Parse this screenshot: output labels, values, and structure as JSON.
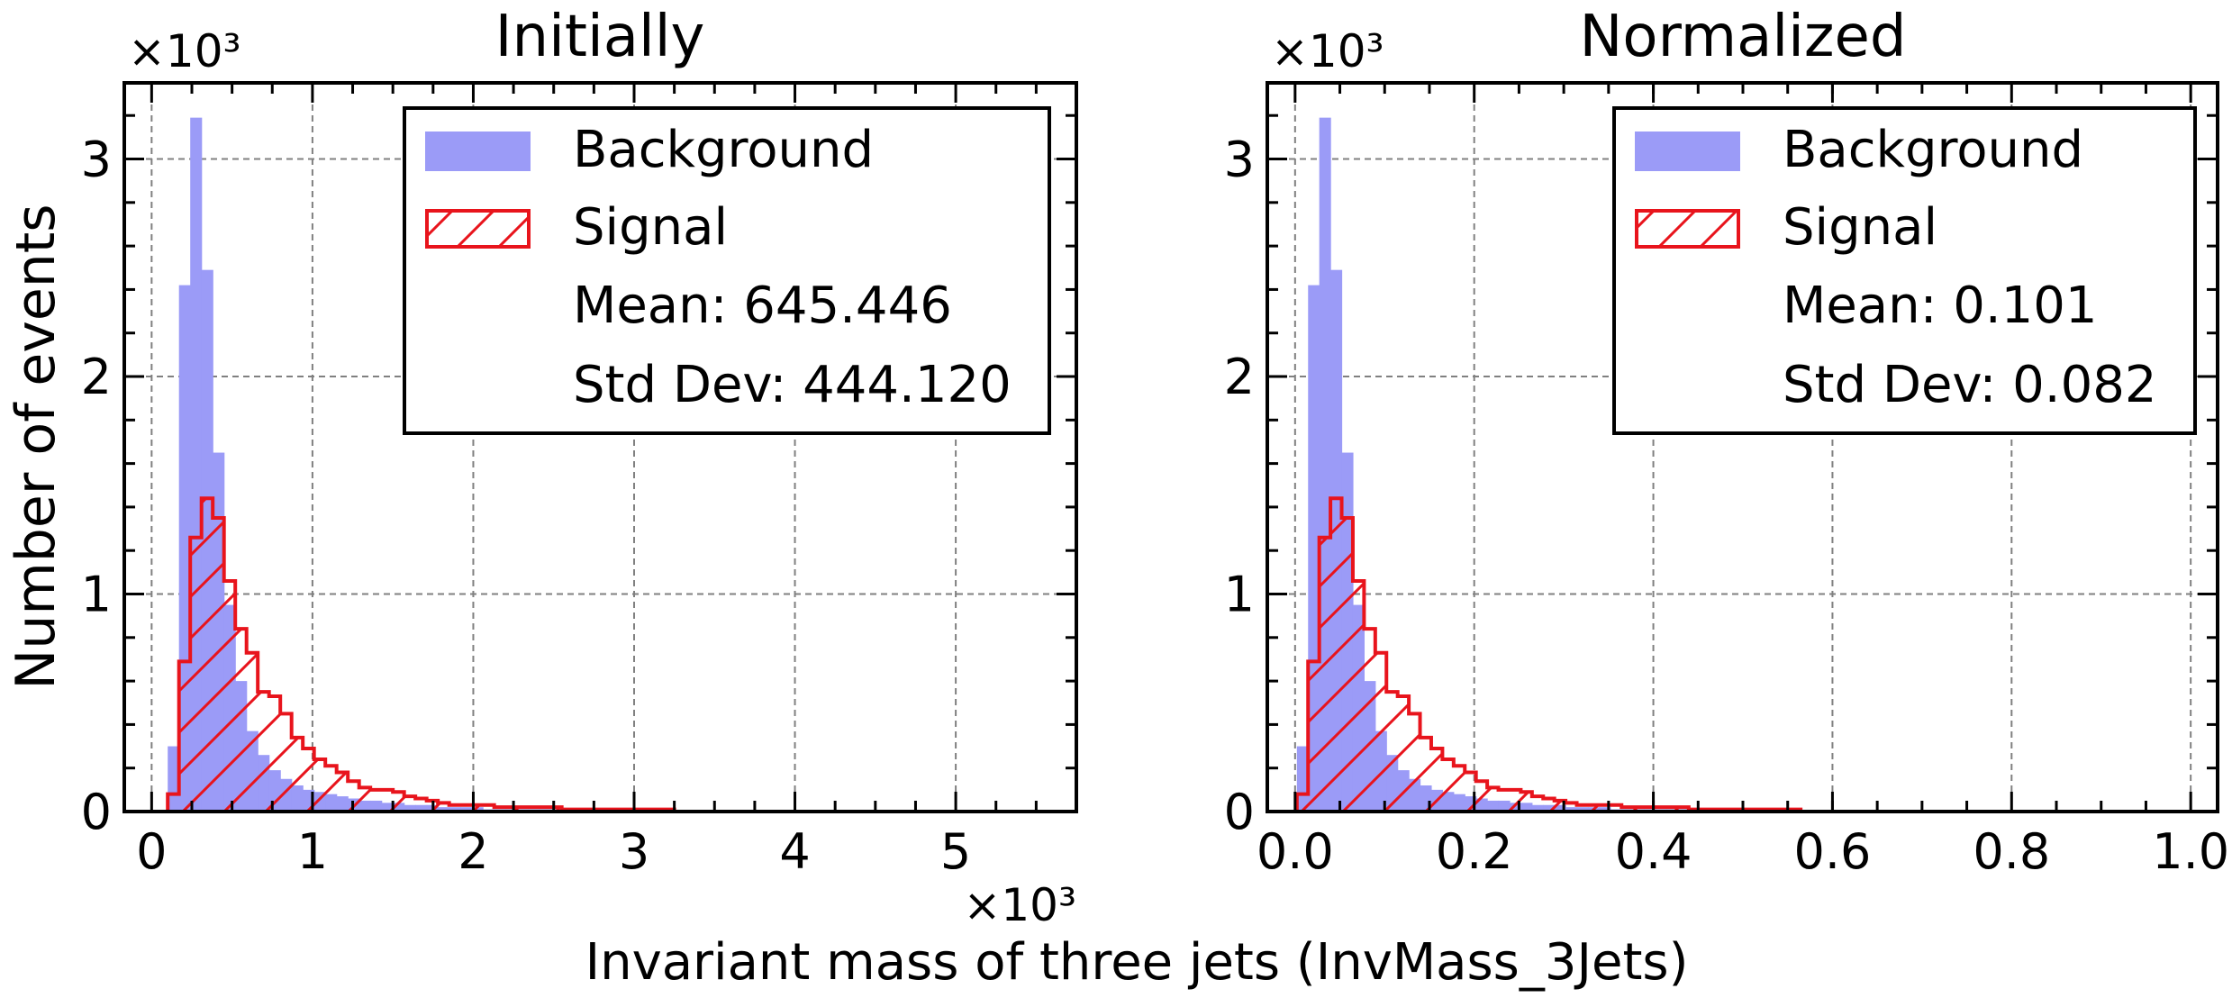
{
  "figure": {
    "ylabel": "Number of events",
    "xlabel": "Invariant mass of three jets (InvMass_3Jets)",
    "y_multiplier": "×10³",
    "x_multiplier": "×10³"
  },
  "colors": {
    "background_fill": "#9b9bf7",
    "signal_edge": "#e8141c",
    "grid": "#808080",
    "legend_edge": "#000000"
  },
  "chart_data": [
    {
      "type": "bar",
      "title": "Initially",
      "xlabel": "",
      "x_multiplier": "×10³",
      "y_multiplier": "×10³",
      "xlim": [
        -0.17,
        5.75
      ],
      "ylim": [
        0,
        3.35
      ],
      "xticks": [
        0,
        1,
        2,
        3,
        4,
        5
      ],
      "xtick_labels": [
        "0",
        "1",
        "2",
        "3",
        "4",
        "5"
      ],
      "yticks": [
        0,
        1,
        2,
        3
      ],
      "ytick_labels": [
        "0",
        "1",
        "2",
        "3"
      ],
      "grid": true,
      "legend_position": "top-right",
      "legend": {
        "entries": [
          "Background",
          "Signal"
        ],
        "stats": [
          "Mean: 645.446",
          "Std Dev: 444.120"
        ]
      },
      "bin_edges": [
        0.1,
        0.17,
        0.24,
        0.31,
        0.38,
        0.45,
        0.52,
        0.59,
        0.66,
        0.73,
        0.8,
        0.87,
        0.94,
        1.01,
        1.08,
        1.15,
        1.22,
        1.29,
        1.36,
        1.43,
        1.5,
        1.57,
        1.64,
        1.71,
        1.78,
        1.85,
        1.92,
        1.99,
        2.06,
        2.13,
        2.2,
        2.27,
        2.34,
        2.41,
        2.48,
        2.55,
        2.62,
        2.69,
        2.76,
        2.83,
        2.9,
        2.97,
        3.04,
        3.11,
        3.18,
        3.25
      ],
      "series": [
        {
          "name": "Background",
          "style": "filled",
          "values": [
            0.3,
            2.42,
            3.19,
            2.49,
            1.65,
            0.95,
            0.6,
            0.37,
            0.26,
            0.19,
            0.15,
            0.12,
            0.1,
            0.09,
            0.08,
            0.07,
            0.06,
            0.05,
            0.05,
            0.04,
            0.04,
            0.03,
            0.03,
            0.03,
            0.02,
            0.02,
            0.02,
            0.02,
            0.01,
            0.01,
            0.01,
            0.01,
            0.01,
            0.01,
            0.01,
            0.01,
            0.01,
            0.01,
            0,
            0,
            0,
            0,
            0,
            0,
            0
          ]
        },
        {
          "name": "Signal",
          "style": "hatched step",
          "values": [
            0.08,
            0.69,
            1.26,
            1.44,
            1.35,
            1.06,
            0.84,
            0.73,
            0.55,
            0.53,
            0.45,
            0.34,
            0.29,
            0.24,
            0.21,
            0.18,
            0.14,
            0.11,
            0.1,
            0.1,
            0.09,
            0.07,
            0.06,
            0.05,
            0.04,
            0.03,
            0.03,
            0.03,
            0.03,
            0.02,
            0.02,
            0.02,
            0.02,
            0.02,
            0.02,
            0.01,
            0.01,
            0.01,
            0.01,
            0.01,
            0.01,
            0.01,
            0.01,
            0.01,
            0.01
          ]
        }
      ]
    },
    {
      "type": "bar",
      "title": "Normalized",
      "xlabel": "",
      "y_multiplier": "×10³",
      "xlim": [
        -0.031,
        1.03
      ],
      "ylim": [
        0,
        3.35
      ],
      "xticks": [
        0,
        0.2,
        0.4,
        0.6,
        0.8,
        1.0
      ],
      "xtick_labels": [
        "0.0",
        "0.2",
        "0.4",
        "0.6",
        "0.8",
        "1.0"
      ],
      "yticks": [
        0,
        1,
        2,
        3
      ],
      "ytick_labels": [
        "0",
        "1",
        "2",
        "3"
      ],
      "grid": true,
      "legend_position": "top-right",
      "legend": {
        "entries": [
          "Background",
          "Signal"
        ],
        "stats": [
          "Mean: 0.101",
          "Std Dev: 0.082"
        ]
      },
      "bin_edges": [
        0.002,
        0.0145,
        0.027,
        0.0395,
        0.052,
        0.0645,
        0.077,
        0.0895,
        0.102,
        0.1145,
        0.127,
        0.1395,
        0.152,
        0.1645,
        0.177,
        0.1895,
        0.202,
        0.2145,
        0.227,
        0.2395,
        0.252,
        0.2645,
        0.277,
        0.2895,
        0.302,
        0.3145,
        0.327,
        0.3395,
        0.352,
        0.3645,
        0.377,
        0.3895,
        0.402,
        0.4145,
        0.427,
        0.4395,
        0.452,
        0.4645,
        0.477,
        0.4895,
        0.502,
        0.5145,
        0.527,
        0.5395,
        0.552,
        0.5645
      ],
      "series": [
        {
          "name": "Background",
          "style": "filled",
          "values": [
            0.3,
            2.42,
            3.19,
            2.49,
            1.65,
            0.95,
            0.6,
            0.37,
            0.26,
            0.19,
            0.15,
            0.12,
            0.1,
            0.09,
            0.08,
            0.07,
            0.06,
            0.05,
            0.05,
            0.04,
            0.04,
            0.03,
            0.03,
            0.03,
            0.02,
            0.02,
            0.02,
            0.02,
            0.01,
            0.01,
            0.01,
            0.01,
            0.01,
            0.01,
            0.01,
            0.01,
            0.01,
            0.01,
            0,
            0,
            0,
            0,
            0,
            0,
            0
          ]
        },
        {
          "name": "Signal",
          "style": "hatched step",
          "values": [
            0.08,
            0.69,
            1.26,
            1.44,
            1.35,
            1.06,
            0.84,
            0.73,
            0.55,
            0.53,
            0.45,
            0.34,
            0.29,
            0.24,
            0.21,
            0.18,
            0.14,
            0.11,
            0.1,
            0.1,
            0.09,
            0.07,
            0.06,
            0.05,
            0.04,
            0.03,
            0.03,
            0.03,
            0.03,
            0.02,
            0.02,
            0.02,
            0.02,
            0.02,
            0.02,
            0.01,
            0.01,
            0.01,
            0.01,
            0.01,
            0.01,
            0.01,
            0.01,
            0.01,
            0.01
          ]
        }
      ]
    }
  ]
}
